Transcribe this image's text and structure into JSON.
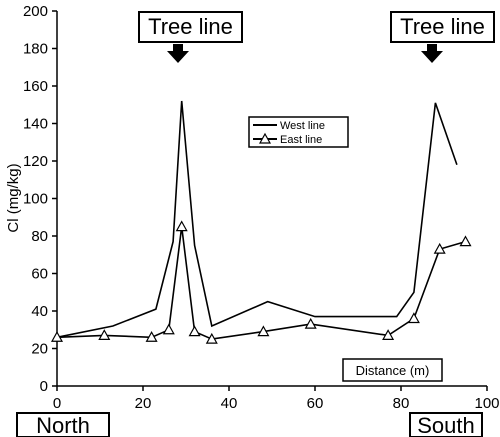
{
  "chart_data": {
    "type": "line",
    "xlabel": "Distance (m)",
    "ylabel": "Cl (mg/kg)",
    "xlim": [
      0,
      100
    ],
    "ylim": [
      0,
      200
    ],
    "x_ticks": [
      "0",
      "20",
      "40",
      "60",
      "80",
      "100"
    ],
    "y_ticks": [
      "0",
      "20",
      "40",
      "60",
      "80",
      "100",
      "120",
      "140",
      "160",
      "180",
      "200"
    ],
    "grid": false,
    "legend_position": "center-right",
    "series": [
      {
        "name": "West line",
        "marker": "none",
        "points": [
          {
            "x": 0,
            "y": 26
          },
          {
            "x": 13,
            "y": 32
          },
          {
            "x": 23,
            "y": 41
          },
          {
            "x": 27,
            "y": 77
          },
          {
            "x": 29,
            "y": 152
          },
          {
            "x": 32,
            "y": 75
          },
          {
            "x": 36,
            "y": 32
          },
          {
            "x": 49,
            "y": 45
          },
          {
            "x": 60,
            "y": 37
          },
          {
            "x": 79,
            "y": 37
          },
          {
            "x": 83,
            "y": 50
          },
          {
            "x": 88,
            "y": 151
          },
          {
            "x": 93,
            "y": 118
          }
        ]
      },
      {
        "name": "East line",
        "marker": "triangle",
        "points": [
          {
            "x": 0,
            "y": 26
          },
          {
            "x": 11,
            "y": 27
          },
          {
            "x": 22,
            "y": 26
          },
          {
            "x": 26,
            "y": 30
          },
          {
            "x": 29,
            "y": 85
          },
          {
            "x": 32,
            "y": 29
          },
          {
            "x": 36,
            "y": 25
          },
          {
            "x": 48,
            "y": 29
          },
          {
            "x": 59,
            "y": 33
          },
          {
            "x": 77,
            "y": 27
          },
          {
            "x": 83,
            "y": 36
          },
          {
            "x": 89,
            "y": 73
          },
          {
            "x": 95,
            "y": 77
          }
        ]
      }
    ],
    "annotations": {
      "tree_line_left": "Tree line",
      "tree_line_right": "Tree line",
      "north": "North",
      "south": "South",
      "distance_box": "Distance (m)"
    }
  }
}
